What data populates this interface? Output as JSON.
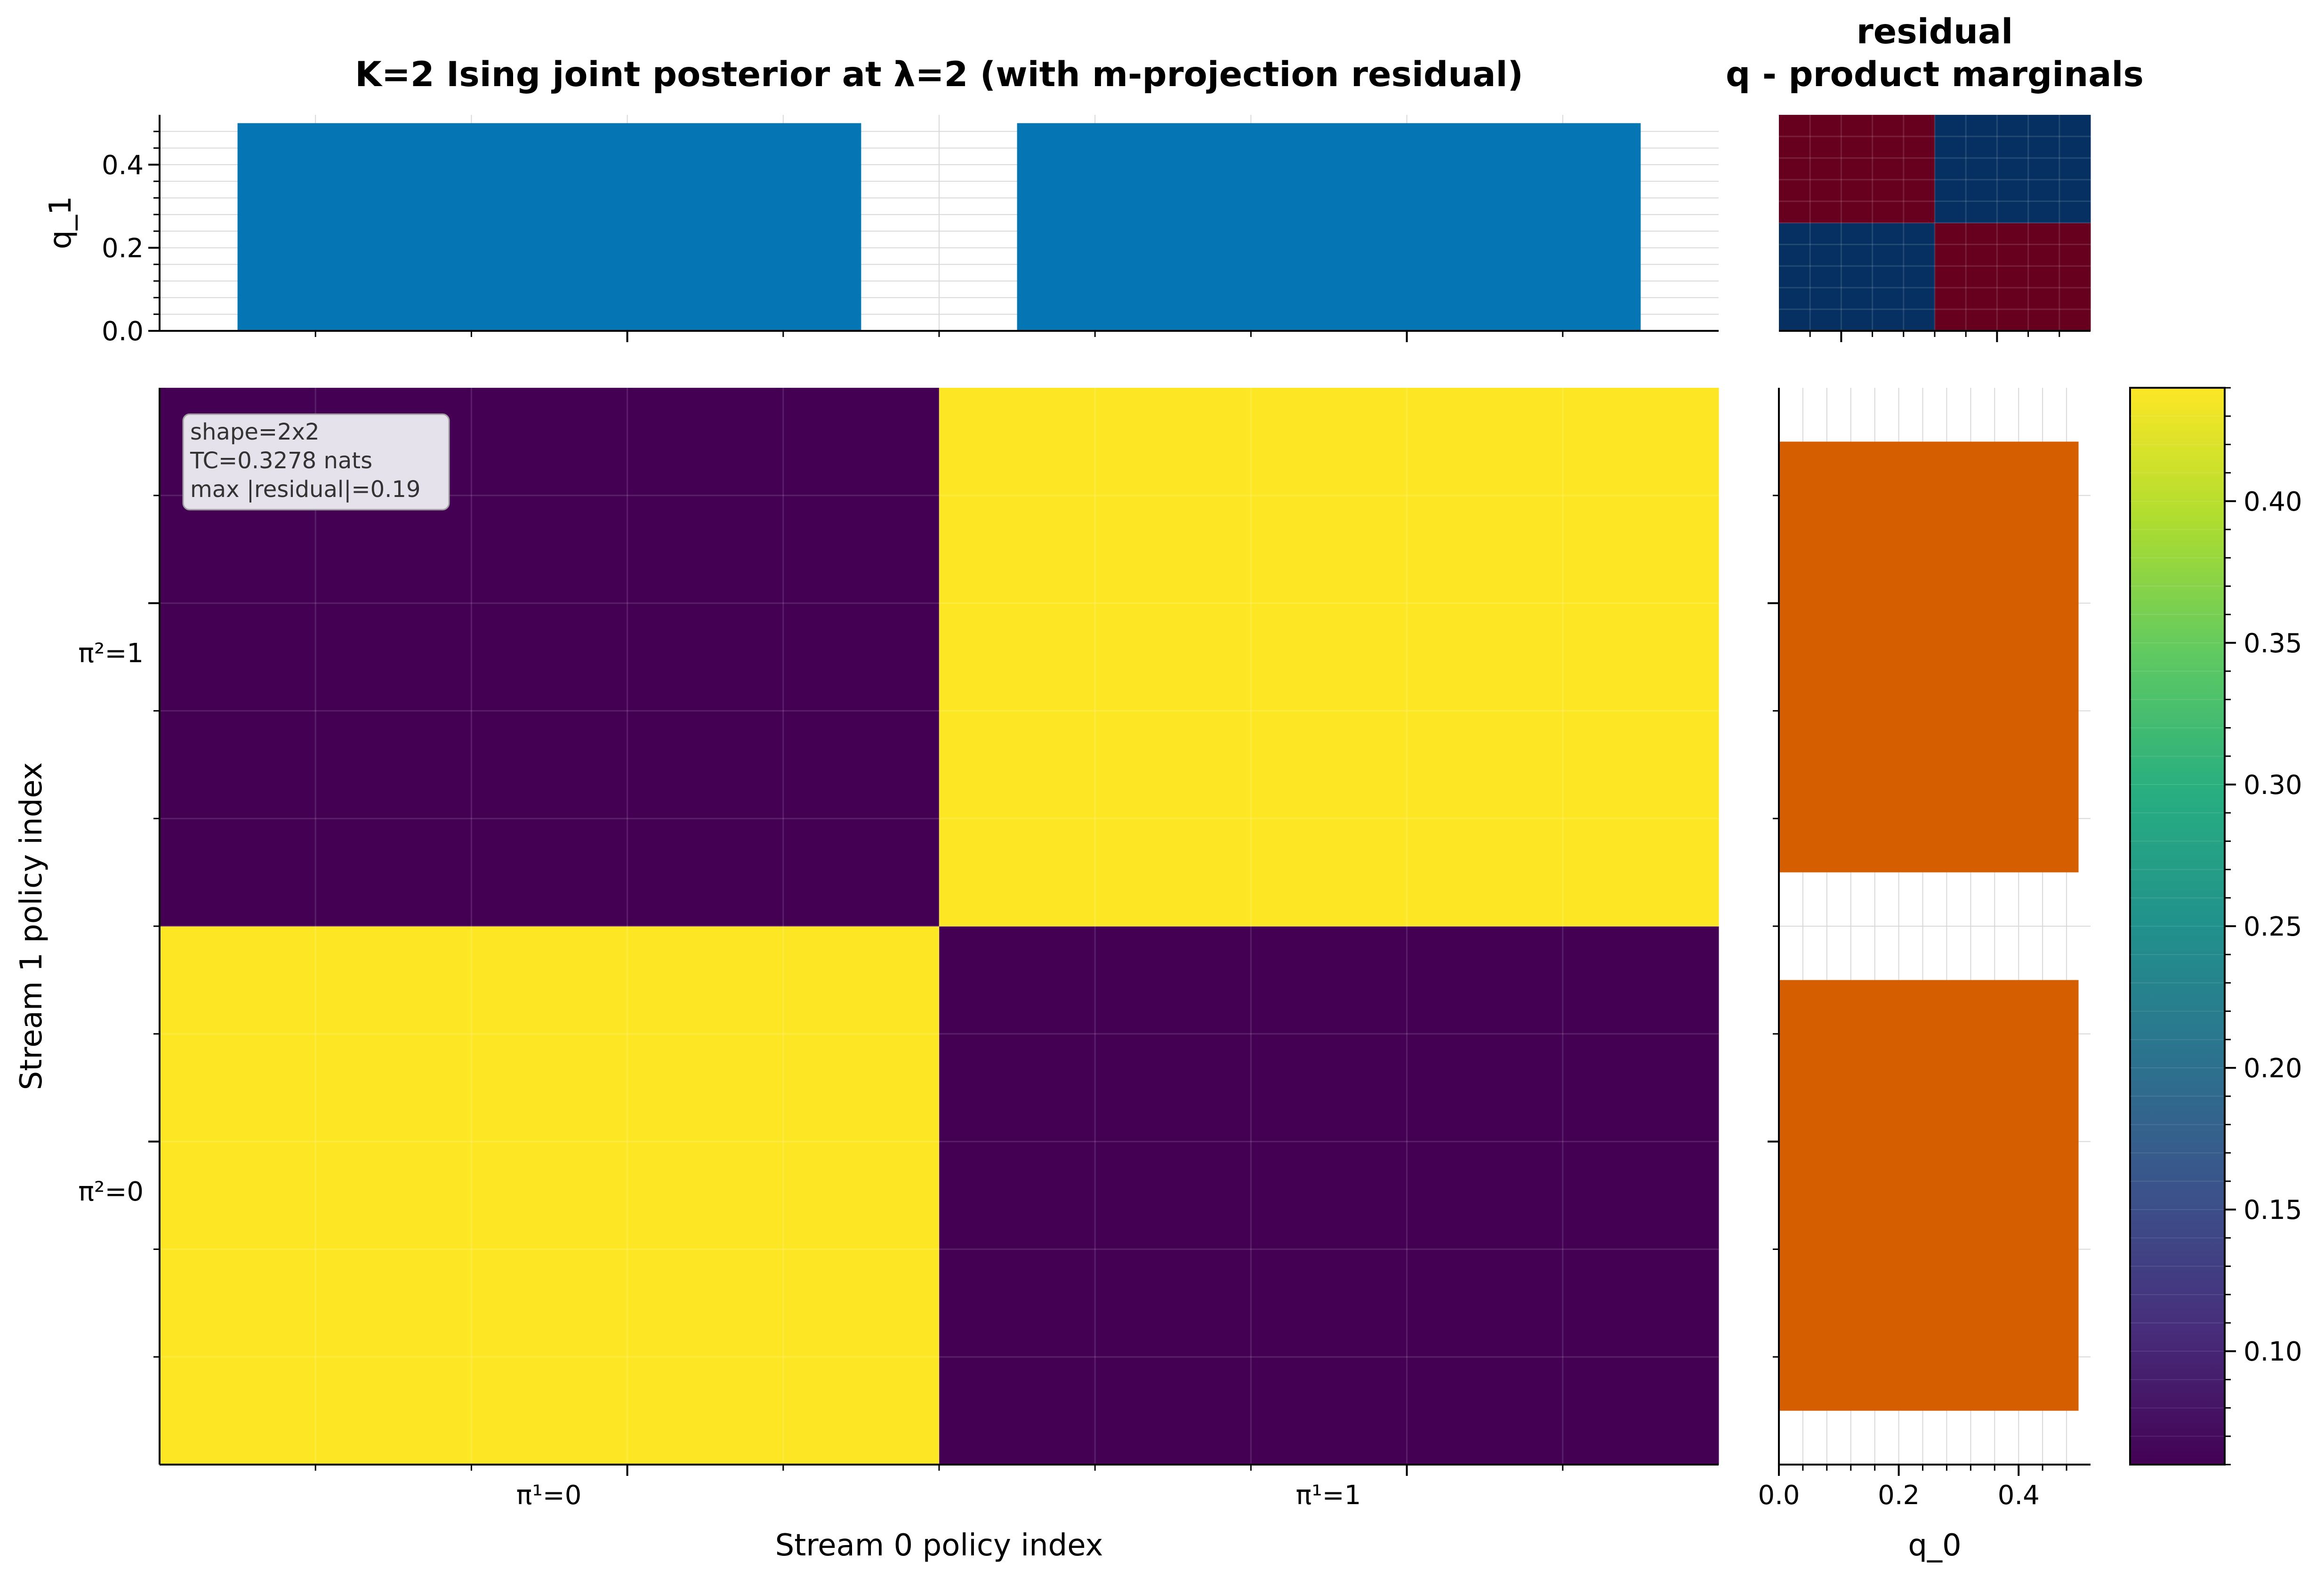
{
  "chart_data": [
    {
      "id": "joint",
      "type": "heatmap",
      "title": "K=2 Ising joint posterior at λ=2 (with m-projection residual)",
      "xlabel": "Stream 0 policy index",
      "ylabel": "Stream 1 policy index",
      "x_categories": [
        "π¹=0",
        "π¹=1"
      ],
      "y_categories": [
        "π²=0",
        "π²=1"
      ],
      "values": [
        [
          0.44,
          0.06
        ],
        [
          0.06,
          0.44
        ]
      ],
      "annotation": [
        "shape=2x2",
        "TC=0.3278 nats",
        "max |residual|=0.19"
      ],
      "colormap": "viridis",
      "grid": true
    },
    {
      "id": "marginal_q1",
      "type": "bar",
      "ylabel": "q_1",
      "values": [
        0.5,
        0.5
      ],
      "ylim": [
        0,
        0.52
      ],
      "yticks": [
        "0.0",
        "0.2",
        "0.4"
      ],
      "color": "#0072b2",
      "grid": true
    },
    {
      "id": "marginal_q0",
      "type": "bar",
      "orientation": "horizontal",
      "xlabel": "q_0",
      "values": [
        0.5,
        0.5
      ],
      "xlim": [
        0,
        0.52
      ],
      "xticks": [
        "0.0",
        "0.2",
        "0.4"
      ],
      "color": "#d55e00",
      "grid": true
    },
    {
      "id": "residual",
      "type": "heatmap",
      "title": [
        "residual",
        "q - product marginals"
      ],
      "values": [
        [
          0.19,
          -0.19
        ],
        [
          -0.19,
          0.19
        ]
      ],
      "colormap": "RdBu",
      "colors": {
        "positive": "#053061",
        "negative": "#67001f"
      }
    },
    {
      "id": "colorbar",
      "type": "colorbar",
      "range": [
        0.06,
        0.44
      ],
      "ticks": [
        "0.10",
        "0.15",
        "0.20",
        "0.25",
        "0.30",
        "0.35",
        "0.40"
      ]
    }
  ]
}
